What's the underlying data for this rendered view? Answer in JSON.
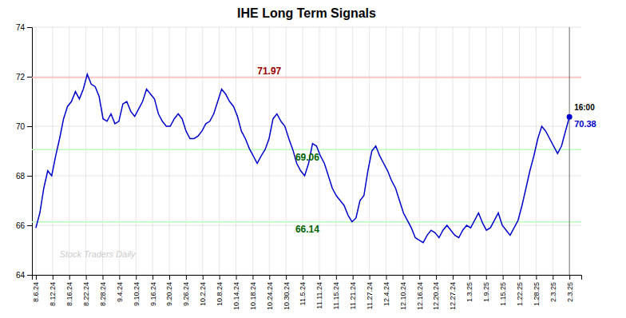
{
  "chart_data": {
    "type": "line",
    "title": "IHE Long Term Signals",
    "color": "#0000cc",
    "grid": true,
    "x": [
      0,
      1,
      2,
      3,
      4,
      5,
      6,
      7,
      8,
      9,
      10,
      11,
      12,
      13,
      14,
      15,
      16,
      17,
      18,
      19,
      20,
      21,
      22,
      23,
      24,
      25,
      26,
      27,
      28,
      29,
      30,
      31,
      32,
      33,
      34,
      35,
      36,
      37,
      38,
      39,
      40,
      41,
      42,
      43,
      44,
      45,
      46,
      47,
      48,
      49,
      50,
      51,
      52,
      53,
      54,
      55,
      56,
      57,
      58,
      59,
      60,
      61,
      62,
      63,
      64,
      65,
      66,
      67,
      68,
      69,
      70,
      71,
      72,
      73,
      74,
      75,
      76,
      77,
      78,
      79,
      80,
      81,
      82,
      83,
      84,
      85,
      86,
      87,
      88,
      89,
      90,
      91,
      92,
      93,
      94,
      95,
      96,
      97,
      98,
      99,
      100,
      101,
      102,
      103,
      104,
      105,
      106,
      107,
      108,
      109,
      110,
      111,
      112,
      113,
      114,
      115,
      116,
      117,
      118,
      119,
      120,
      121,
      122,
      123,
      124,
      125,
      126,
      127,
      128,
      129,
      130,
      131,
      132,
      133,
      134,
      135
    ],
    "values": [
      65.9,
      66.5,
      67.5,
      68.2,
      68.0,
      68.8,
      69.5,
      70.3,
      70.8,
      71.0,
      71.4,
      71.1,
      71.5,
      72.1,
      71.7,
      71.6,
      71.2,
      70.3,
      70.2,
      70.5,
      70.1,
      70.2,
      70.9,
      71.0,
      70.6,
      70.4,
      70.7,
      71.0,
      71.5,
      71.3,
      71.1,
      70.5,
      70.2,
      70.0,
      70.0,
      70.3,
      70.5,
      70.3,
      69.8,
      69.5,
      69.5,
      69.6,
      69.8,
      70.1,
      70.2,
      70.5,
      71.0,
      71.5,
      71.3,
      71.0,
      70.8,
      70.4,
      69.8,
      69.5,
      69.1,
      68.8,
      68.5,
      68.8,
      69.06,
      69.5,
      70.3,
      70.5,
      70.2,
      70.0,
      69.5,
      69.06,
      68.5,
      68.2,
      68.0,
      68.5,
      69.3,
      69.2,
      68.8,
      68.5,
      68.0,
      67.5,
      67.2,
      67.0,
      66.8,
      66.4,
      66.14,
      66.3,
      67.0,
      67.2,
      68.2,
      69.0,
      69.2,
      68.8,
      68.5,
      68.2,
      67.8,
      67.5,
      67.0,
      66.5,
      66.2,
      65.9,
      65.5,
      65.4,
      65.3,
      65.6,
      65.8,
      65.7,
      65.5,
      65.8,
      66.0,
      65.8,
      65.6,
      65.5,
      65.8,
      66.0,
      65.9,
      66.2,
      66.5,
      66.1,
      65.8,
      65.9,
      66.2,
      66.5,
      66.0,
      65.8,
      65.6,
      65.9,
      66.2,
      66.8,
      67.5,
      68.2,
      68.8,
      69.5,
      70.0,
      69.8,
      69.5,
      69.2,
      68.9,
      69.2,
      69.8,
      70.38
    ],
    "xlim": [
      -1,
      138
    ],
    "xticks": [
      {
        "value": 0,
        "label": "8.6.24"
      },
      {
        "value": 4.21875,
        "label": "8.12.24"
      },
      {
        "value": 8.4375,
        "label": "8.16.24"
      },
      {
        "value": 12.65625,
        "label": "8.22.24"
      },
      {
        "value": 16.875,
        "label": "8.28.24"
      },
      {
        "value": 21.09375,
        "label": "9.4.24"
      },
      {
        "value": 25.3125,
        "label": "9.10.24"
      },
      {
        "value": 29.53125,
        "label": "9.16.24"
      },
      {
        "value": 33.75,
        "label": "9.20.24"
      },
      {
        "value": 37.96875,
        "label": "9.26.24"
      },
      {
        "value": 42.1875,
        "label": "10.2.24"
      },
      {
        "value": 46.40625,
        "label": "10.8.24"
      },
      {
        "value": 50.625,
        "label": "10.14.24"
      },
      {
        "value": 54.84375,
        "label": "10.18.24"
      },
      {
        "value": 59.0625,
        "label": "10.24.24"
      },
      {
        "value": 63.28125,
        "label": "10.30.24"
      },
      {
        "value": 67.5,
        "label": "11.5.24"
      },
      {
        "value": 71.71875,
        "label": "11.11.24"
      },
      {
        "value": 75.9375,
        "label": "11.15.24"
      },
      {
        "value": 80.15625,
        "label": "11.21.24"
      },
      {
        "value": 84.375,
        "label": "11.27.24"
      },
      {
        "value": 88.59375,
        "label": "12.4.24"
      },
      {
        "value": 92.8125,
        "label": "12.10.24"
      },
      {
        "value": 97.03125,
        "label": "12.16.24"
      },
      {
        "value": 101.25,
        "label": "12.20.24"
      },
      {
        "value": 105.46875,
        "label": "12.27.24"
      },
      {
        "value": 109.6875,
        "label": "1.3.25"
      },
      {
        "value": 113.90625,
        "label": "1.9.25"
      },
      {
        "value": 118.125,
        "label": "1.15.25"
      },
      {
        "value": 122.34375,
        "label": "1.22.25"
      },
      {
        "value": 126.5625,
        "label": "1.28.25"
      },
      {
        "value": 130.78125,
        "label": "2.3.25"
      },
      {
        "value": 135,
        "label": "2.3.25"
      }
    ],
    "ylim": [
      64,
      74
    ],
    "yticks": [
      64,
      66,
      68,
      70,
      72,
      74
    ],
    "hlines": [
      {
        "value": 71.97,
        "color": "#ffbbbb",
        "label": "71.97",
        "label_color": "#990000"
      },
      {
        "value": 69.06,
        "color": "#bbffbb",
        "label": "69.06",
        "label_color": "#006600"
      },
      {
        "value": 66.14,
        "color": "#bbffbb",
        "label": "66.14",
        "label_color": "#006600"
      }
    ],
    "end_label": {
      "time": "16:00",
      "price": "70.38",
      "color": "#0000cc"
    },
    "watermark": {
      "text": "Stock Traders Daily",
      "color": "#cccccc"
    }
  }
}
